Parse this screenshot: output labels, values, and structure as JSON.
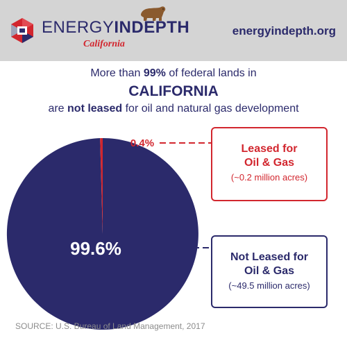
{
  "header": {
    "logo_text_light": "ENERGY",
    "logo_text_bold": "INDEPTH",
    "logo_state": "California",
    "site_url": "energyindepth.org"
  },
  "headline": {
    "line1_pre": "More than",
    "line1_bold": "99%",
    "line1_post": "of federal lands in",
    "line2": "CALIFORNIA",
    "line3_pre": "are",
    "line3_bold": "not leased",
    "line3_post": "for oil and natural gas development"
  },
  "chart_data": {
    "type": "pie",
    "title": "",
    "slices": [
      {
        "label": "Not Leased for Oil & Gas",
        "value": 99.6,
        "value_label": "99.6%",
        "note": "(~49.5 million acres)",
        "color": "#2b2a6b"
      },
      {
        "label": "Leased for Oil & Gas",
        "value": 0.4,
        "value_label": "0.4%",
        "note": "(~0.2 million acres)",
        "color": "#d2262e"
      }
    ]
  },
  "callouts": {
    "leased_title_1": "Leased for",
    "leased_title_2": "Oil & Gas",
    "leased_sub": "(~0.2 million acres)",
    "notleased_title_1": "Not Leased for",
    "notleased_title_2": "Oil & Gas",
    "notleased_sub": "(~49.5 million acres)"
  },
  "source": "SOURCE: U.S. Bureau of Land Management, 2017",
  "colors": {
    "navy": "#2b2a6b",
    "red": "#d2262e",
    "header_bg": "#d4d4d4",
    "source_gray": "#8c8c8c"
  },
  "icons": [
    "logo-mark-icon",
    "california-bear-icon"
  ]
}
